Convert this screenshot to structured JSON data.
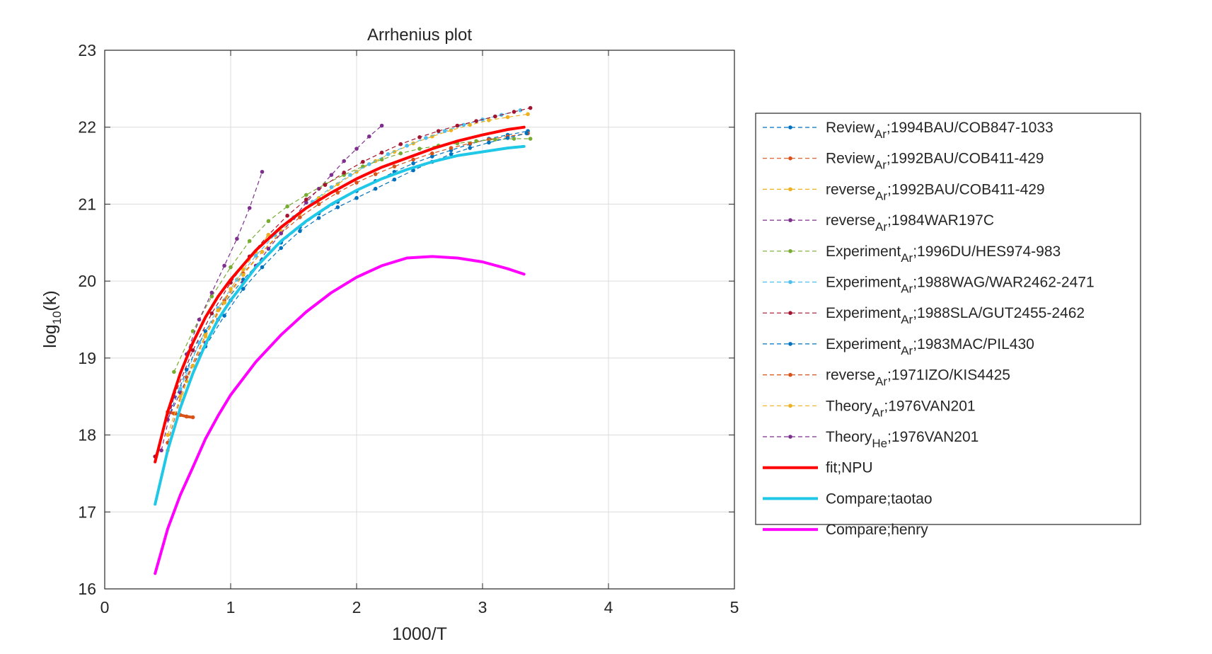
{
  "chart_data": {
    "type": "line",
    "title": "Arrhenius plot",
    "xlabel": "1000/T",
    "ylabel": {
      "base": "log",
      "sub": "10",
      "rest": "(k)"
    },
    "xlim": [
      0,
      5
    ],
    "ylim": [
      16,
      23
    ],
    "xticks": [
      "0",
      "1",
      "2",
      "3",
      "4",
      "5"
    ],
    "yticks": [
      "16",
      "17",
      "18",
      "19",
      "20",
      "21",
      "22",
      "23"
    ],
    "grid": true,
    "legend_position": "outside-right",
    "series": [
      {
        "main": "Review",
        "sub": "Ar",
        "rest": ";1994BAU/COB847-1033",
        "color": "#0072bd",
        "style": "dashed-marker",
        "x": [
          0.5,
          0.65,
          0.8,
          0.95,
          1.1,
          1.25,
          1.4,
          1.55,
          1.7,
          1.85,
          2.0,
          2.15,
          2.3,
          2.45,
          2.6,
          2.75,
          2.9,
          3.05,
          3.2,
          3.36
        ],
        "y": [
          18.2,
          18.85,
          19.35,
          19.72,
          20.02,
          20.28,
          20.5,
          20.7,
          20.88,
          21.03,
          21.17,
          21.3,
          21.42,
          21.53,
          21.62,
          21.7,
          21.78,
          21.85,
          21.9,
          21.95
        ]
      },
      {
        "main": "Review",
        "sub": "Ar",
        "rest": ";1992BAU/COB411-429",
        "color": "#d95319",
        "style": "dashed-marker",
        "x": [
          0.5,
          0.65,
          0.8,
          0.95,
          1.1,
          1.25,
          1.4,
          1.55,
          1.7,
          1.85,
          2.0,
          2.15,
          2.3,
          2.45,
          2.6,
          2.75,
          2.9,
          3.05,
          3.2,
          3.36
        ],
        "y": [
          17.9,
          18.75,
          19.3,
          19.75,
          20.1,
          20.38,
          20.62,
          20.83,
          21.0,
          21.15,
          21.28,
          21.39,
          21.49,
          21.58,
          21.66,
          21.73,
          21.79,
          21.84,
          21.88,
          21.92
        ]
      },
      {
        "main": "reverse",
        "sub": "Ar",
        "rest": ";1992BAU/COB411-429",
        "color": "#edb120",
        "style": "dashed-marker",
        "x": [
          0.5,
          0.65,
          0.8,
          0.95,
          1.1,
          1.25,
          1.4,
          1.55,
          1.7,
          1.85,
          2.0,
          2.15,
          2.3,
          2.45,
          2.6,
          2.75,
          2.9,
          3.05,
          3.2,
          3.36
        ],
        "y": [
          17.8,
          18.7,
          19.28,
          19.72,
          20.08,
          20.38,
          20.65,
          20.88,
          21.08,
          21.26,
          21.42,
          21.56,
          21.68,
          21.79,
          21.88,
          21.96,
          22.03,
          22.09,
          22.13,
          22.17
        ]
      },
      {
        "main": "reverse",
        "sub": "Ar",
        "rest": ";1984WAR197C",
        "color": "#7e2f8e",
        "style": "dashed-marker",
        "x": [
          0.5,
          0.6,
          0.7,
          0.8,
          0.9,
          1.0,
          1.1,
          1.2,
          1.3,
          1.4,
          1.5,
          1.6,
          1.7,
          1.8,
          1.9,
          2.0,
          2.1,
          2.2
        ],
        "y": [
          18.2,
          18.55,
          18.9,
          19.2,
          19.5,
          19.75,
          19.98,
          20.2,
          20.42,
          20.62,
          20.82,
          21.02,
          21.2,
          21.38,
          21.56,
          21.72,
          21.88,
          22.02
        ]
      },
      {
        "main": "Experiment",
        "sub": "Ar",
        "rest": ";1996DU/HES974-983",
        "color": "#77ac30",
        "style": "dashed-marker",
        "x": [
          0.55,
          0.7,
          0.85,
          1.0,
          1.15,
          1.3,
          1.45,
          1.6,
          1.75,
          1.9,
          2.05,
          2.2,
          2.35,
          2.5,
          2.65,
          2.8,
          2.95,
          3.1,
          3.25,
          3.38
        ],
        "y": [
          18.82,
          19.35,
          19.8,
          20.18,
          20.52,
          20.78,
          20.97,
          21.12,
          21.26,
          21.38,
          21.49,
          21.58,
          21.66,
          21.72,
          21.76,
          21.79,
          21.82,
          21.84,
          21.85,
          21.85
        ]
      },
      {
        "main": "Experiment",
        "sub": "Ar",
        "rest": ";1988WAG/WAR2462-2471",
        "color": "#4dbeee",
        "style": "dashed-marker",
        "x": [
          0.6,
          0.75,
          0.9,
          1.05,
          1.2,
          1.35,
          1.5,
          1.65,
          1.8,
          1.95,
          2.1,
          2.25,
          2.4,
          2.55,
          2.7,
          2.85,
          3.0,
          3.15,
          3.3
        ],
        "y": [
          18.6,
          19.2,
          19.65,
          20.02,
          20.33,
          20.6,
          20.83,
          21.03,
          21.22,
          21.38,
          21.52,
          21.65,
          21.76,
          21.86,
          21.95,
          22.03,
          22.1,
          22.16,
          22.22
        ]
      },
      {
        "main": "Experiment",
        "sub": "Ar",
        "rest": ";1988SLA/GUT2455-2462",
        "color": "#a2142f",
        "style": "dashed-marker",
        "x": [
          0.4,
          0.55,
          0.7,
          0.85,
          1.0,
          1.15,
          1.3,
          1.45,
          1.6,
          1.75,
          1.9,
          2.05,
          2.2,
          2.35,
          2.5,
          2.65,
          2.8,
          2.95,
          3.1,
          3.25,
          3.38
        ],
        "y": [
          17.72,
          18.5,
          19.1,
          19.58,
          19.98,
          20.32,
          20.6,
          20.85,
          21.06,
          21.25,
          21.41,
          21.55,
          21.67,
          21.78,
          21.87,
          21.95,
          22.02,
          22.08,
          22.14,
          22.2,
          22.25
        ]
      },
      {
        "main": "Experiment",
        "sub": "Ar",
        "rest": ";1983MAC/PIL430",
        "color": "#0072bd",
        "style": "dashed-marker",
        "x": [
          0.8,
          0.95,
          1.1,
          1.25,
          1.4,
          1.55,
          1.7,
          1.85,
          2.0,
          2.15,
          2.3,
          2.45,
          2.6,
          2.75,
          2.9,
          3.05,
          3.2,
          3.35
        ],
        "y": [
          19.15,
          19.55,
          19.9,
          20.18,
          20.43,
          20.65,
          20.82,
          20.96,
          21.08,
          21.2,
          21.32,
          21.44,
          21.55,
          21.65,
          21.73,
          21.8,
          21.86,
          21.92
        ]
      },
      {
        "main": "reverse",
        "sub": "Ar",
        "rest": ";1971IZO/KIS4425",
        "color": "#d95319",
        "style": "dashed-marker",
        "x": [
          0.5,
          0.55,
          0.6,
          0.65,
          0.7
        ],
        "y": [
          18.3,
          18.28,
          18.26,
          18.24,
          18.23
        ]
      },
      {
        "main": "Theory",
        "sub": "Ar",
        "rest": ";1976VAN201",
        "color": "#edb120",
        "style": "dashed-marker",
        "x": [
          0.5,
          0.6,
          0.7,
          0.8,
          0.9,
          1.0,
          1.1,
          1.2,
          1.3
        ],
        "y": [
          18.0,
          18.5,
          18.9,
          19.3,
          19.62,
          19.9,
          20.15,
          20.38,
          20.6
        ]
      },
      {
        "main": "Theory",
        "sub": "He",
        "rest": ";1976VAN201",
        "color": "#7e2f8e",
        "style": "dashed-marker",
        "x": [
          0.45,
          0.55,
          0.65,
          0.75,
          0.85,
          0.95,
          1.05,
          1.15,
          1.25
        ],
        "y": [
          17.8,
          18.5,
          19.05,
          19.5,
          19.85,
          20.2,
          20.55,
          20.95,
          21.42
        ]
      },
      {
        "main": "fit;NPU",
        "sub": "",
        "rest": "",
        "color": "#ff0000",
        "style": "solid",
        "x": [
          0.4,
          0.5,
          0.6,
          0.7,
          0.8,
          0.9,
          1.0,
          1.2,
          1.4,
          1.6,
          1.8,
          2.0,
          2.2,
          2.4,
          2.6,
          2.8,
          3.0,
          3.2,
          3.33
        ],
        "y": [
          17.65,
          18.3,
          18.8,
          19.2,
          19.53,
          19.8,
          20.02,
          20.4,
          20.7,
          20.95,
          21.15,
          21.33,
          21.48,
          21.6,
          21.72,
          21.82,
          21.9,
          21.97,
          22.0
        ]
      },
      {
        "main": "Compare;taotao",
        "sub": "",
        "rest": "",
        "color": "#1ec8e6",
        "style": "solid",
        "x": [
          0.4,
          0.5,
          0.6,
          0.7,
          0.8,
          0.9,
          1.0,
          1.2,
          1.4,
          1.6,
          1.8,
          2.0,
          2.2,
          2.4,
          2.6,
          2.8,
          3.0,
          3.2,
          3.33
        ],
        "y": [
          17.1,
          17.8,
          18.35,
          18.8,
          19.18,
          19.5,
          19.75,
          20.18,
          20.52,
          20.78,
          21.0,
          21.18,
          21.33,
          21.45,
          21.55,
          21.63,
          21.68,
          21.73,
          21.75
        ]
      },
      {
        "main": "Compare;henry",
        "sub": "",
        "rest": "",
        "color": "#ff00ff",
        "style": "solid",
        "x": [
          0.4,
          0.5,
          0.6,
          0.7,
          0.8,
          0.9,
          1.0,
          1.2,
          1.4,
          1.6,
          1.8,
          2.0,
          2.2,
          2.4,
          2.6,
          2.8,
          3.0,
          3.2,
          3.33
        ],
        "y": [
          16.2,
          16.78,
          17.22,
          17.58,
          17.95,
          18.25,
          18.52,
          18.95,
          19.3,
          19.6,
          19.85,
          20.05,
          20.2,
          20.3,
          20.32,
          20.3,
          20.25,
          20.16,
          20.09
        ]
      }
    ]
  }
}
